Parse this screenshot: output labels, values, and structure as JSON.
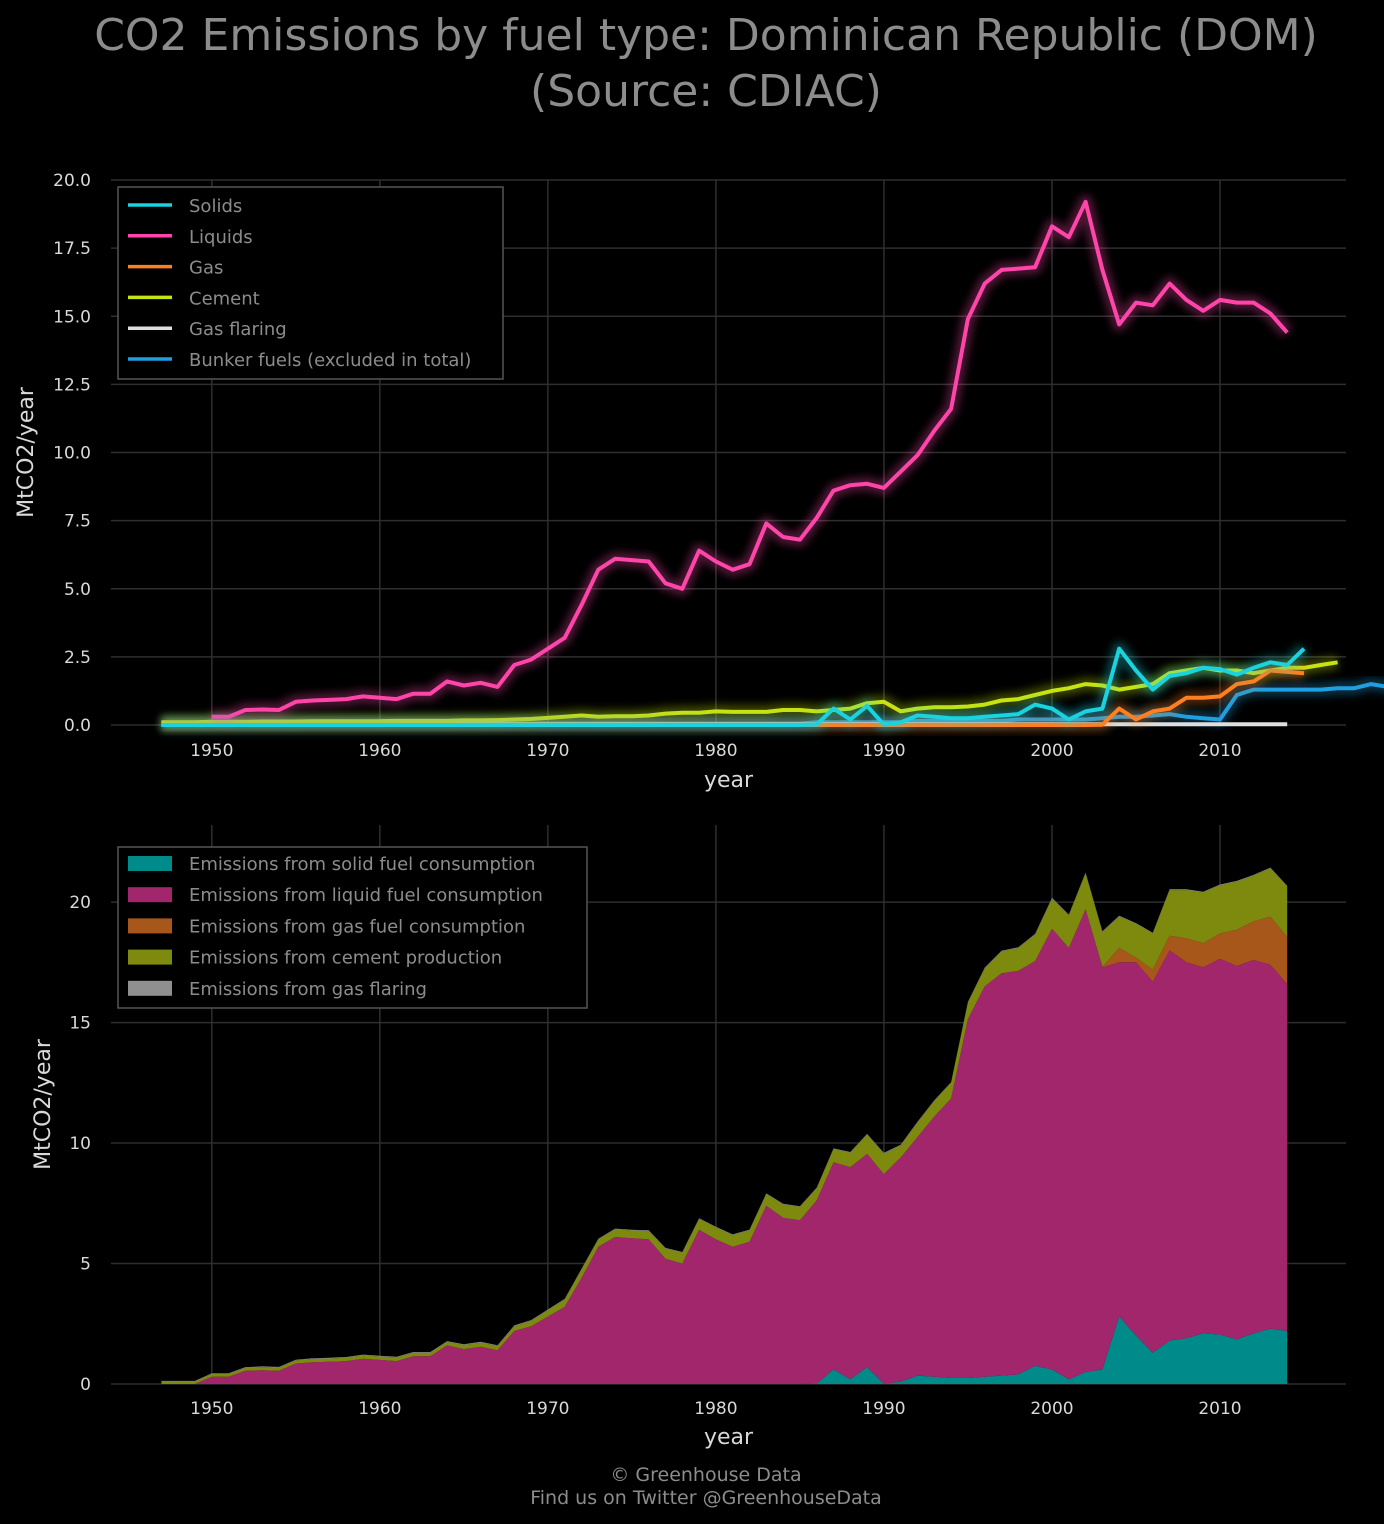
{
  "title_line1": "CO2 Emissions by fuel type: Dominican Republic (DOM)",
  "title_line2": "(Source: CDIAC)",
  "footer_line1": "© Greenhouse Data",
  "footer_line2": "Find us on Twitter @GreenhouseData",
  "chart_data": [
    {
      "type": "line",
      "xlabel": "year",
      "ylabel": "MtCO2/year",
      "xlim": [
        1944,
        2017.5
      ],
      "ylim": [
        0,
        20
      ],
      "xticks": [
        1950,
        1960,
        1970,
        1980,
        1990,
        2000,
        2010
      ],
      "yticks": [
        0,
        2.5,
        5,
        7.5,
        10,
        12.5,
        15,
        17.5,
        20
      ],
      "ytick_labels": [
        "0.0",
        "2.5",
        "5.0",
        "7.5",
        "10.0",
        "12.5",
        "15.0",
        "17.5",
        "20.0"
      ],
      "grid": true,
      "legend_position": "top-left",
      "x_start": 1947,
      "series": [
        {
          "name": "Solids",
          "color": "#19d3df",
          "start": 1947,
          "values": [
            0,
            0,
            0,
            0,
            0,
            0,
            0,
            0,
            0,
            0,
            0,
            0,
            0,
            0,
            0,
            0,
            0,
            0,
            0,
            0,
            0,
            0,
            0,
            0,
            0,
            0,
            0,
            0,
            0,
            0,
            0,
            0,
            0,
            0,
            0,
            0,
            0,
            0,
            0,
            0.02,
            0.6,
            0.2,
            0.7,
            0.01,
            0.1,
            0.35,
            0.3,
            0.25,
            0.25,
            0.3,
            0.35,
            0.4,
            0.75,
            0.6,
            0.2,
            0.5,
            0.6,
            2.8,
            2.0,
            1.3,
            1.8,
            1.9,
            2.1,
            2.05,
            1.85,
            2.1,
            2.3,
            2.2,
            2.8
          ]
        },
        {
          "name": "Liquids",
          "color": "#ff44aa",
          "start": 1950,
          "values": [
            0.3,
            0.3,
            0.55,
            0.57,
            0.55,
            0.85,
            0.9,
            0.92,
            0.95,
            1.05,
            1.0,
            0.95,
            1.15,
            1.15,
            1.6,
            1.45,
            1.55,
            1.4,
            2.2,
            2.4,
            2.8,
            3.2,
            4.4,
            5.7,
            6.1,
            6.05,
            6.0,
            5.2,
            5.0,
            6.4,
            6.0,
            5.7,
            5.9,
            7.4,
            6.9,
            6.8,
            7.6,
            8.6,
            8.8,
            8.85,
            8.7,
            9.3,
            9.9,
            10.8,
            11.6,
            14.9,
            16.2,
            16.7,
            16.75,
            16.8,
            18.3,
            17.9,
            19.2,
            16.7,
            14.7,
            15.5,
            15.4,
            16.2,
            15.6,
            15.2,
            15.6,
            15.5,
            15.5,
            15.1,
            14.4
          ]
        },
        {
          "name": "Gas",
          "color": "#ff7f1e",
          "start": 1947,
          "values": [
            0,
            0,
            0,
            0,
            0,
            0,
            0,
            0,
            0,
            0,
            0,
            0,
            0,
            0,
            0,
            0,
            0,
            0,
            0,
            0,
            0,
            0,
            0,
            0,
            0,
            0,
            0,
            0,
            0,
            0,
            0,
            0,
            0,
            0,
            0,
            0,
            0,
            0,
            0,
            0,
            0,
            0,
            0,
            0,
            0,
            0,
            0,
            0,
            0,
            0,
            0,
            0,
            0,
            0,
            0,
            0,
            0.01,
            0.6,
            0.2,
            0.5,
            0.6,
            1.0,
            1.0,
            1.05,
            1.5,
            1.6,
            2.0,
            1.95,
            1.9
          ]
        },
        {
          "name": "Cement",
          "color": "#c8e312",
          "start": 1947,
          "values": [
            0.1,
            0.1,
            0.1,
            0.12,
            0.12,
            0.12,
            0.13,
            0.13,
            0.13,
            0.14,
            0.14,
            0.14,
            0.14,
            0.14,
            0.15,
            0.15,
            0.15,
            0.15,
            0.17,
            0.17,
            0.18,
            0.2,
            0.22,
            0.26,
            0.3,
            0.35,
            0.3,
            0.32,
            0.32,
            0.35,
            0.42,
            0.45,
            0.45,
            0.5,
            0.48,
            0.48,
            0.48,
            0.55,
            0.55,
            0.5,
            0.55,
            0.6,
            0.8,
            0.85,
            0.5,
            0.6,
            0.65,
            0.65,
            0.68,
            0.75,
            0.9,
            0.95,
            1.1,
            1.25,
            1.35,
            1.5,
            1.45,
            1.3,
            1.4,
            1.5,
            1.9,
            2.0,
            2.1,
            2.0,
            2.0,
            1.9,
            2.0,
            2.1,
            2.1,
            2.2,
            2.3
          ]
        },
        {
          "name": "Gas flaring",
          "color": "#dedede",
          "start": 1947,
          "values": [
            0.03,
            0.03,
            0.03,
            0.03,
            0.03,
            0.03,
            0.03,
            0.03,
            0.03,
            0.03,
            0.03,
            0.03,
            0.03,
            0.03,
            0.03,
            0.03,
            0.03,
            0.03,
            0.03,
            0.03,
            0.03,
            0.03,
            0.03,
            0.03,
            0.03,
            0.03,
            0.03,
            0.03,
            0.03,
            0.03,
            0.03,
            0.03,
            0.03,
            0.03,
            0.03,
            0.03,
            0.03,
            0.03,
            0.03,
            0.03,
            0.03,
            0.03,
            0.03,
            0.03,
            0.03,
            0.03,
            0.03,
            0.03,
            0.03,
            0.03,
            0.03,
            0.03,
            0.03,
            0.03,
            0.03,
            0.03,
            0.03,
            0.03,
            0.03,
            0.03,
            0.03,
            0.03,
            0.03,
            0.03,
            0.03,
            0.03,
            0.03,
            0.03
          ]
        },
        {
          "name": "Bunker fuels (excluded in total)",
          "color": "#1f9fe0",
          "start": 1947,
          "values": [
            0.05,
            0.05,
            0.05,
            0.05,
            0.05,
            0.05,
            0.05,
            0.05,
            0.05,
            0.05,
            0.05,
            0.05,
            0.05,
            0.05,
            0.05,
            0.05,
            0.05,
            0.05,
            0.05,
            0.05,
            0.05,
            0.05,
            0.05,
            0.05,
            0.05,
            0.05,
            0.05,
            0.05,
            0.05,
            0.05,
            0.05,
            0.05,
            0.05,
            0.05,
            0.05,
            0.05,
            0.05,
            0.05,
            0.05,
            0.1,
            0.1,
            0.1,
            0.1,
            0.1,
            0.1,
            0.15,
            0.15,
            0.15,
            0.15,
            0.15,
            0.15,
            0.2,
            0.2,
            0.2,
            0.2,
            0.2,
            0.25,
            0.3,
            0.3,
            0.35,
            0.4,
            0.3,
            0.25,
            0.2,
            1.1,
            1.3,
            1.3,
            1.3,
            1.3,
            1.3,
            1.35,
            1.35,
            1.5,
            1.4,
            1.5
          ]
        }
      ]
    },
    {
      "type": "area",
      "xlabel": "year",
      "ylabel": "MtCO2/year",
      "xlim": [
        1944,
        2017.5
      ],
      "ylim": [
        0,
        23.2
      ],
      "xticks": [
        1950,
        1960,
        1970,
        1980,
        1990,
        2000,
        2010
      ],
      "yticks": [
        0,
        5,
        10,
        15,
        20
      ],
      "grid": true,
      "stacked": true,
      "legend_position": "top-left",
      "series": [
        {
          "name": "Emissions from solid fuel consumption",
          "color": "#008b8b"
        },
        {
          "name": "Emissions from liquid fuel consumption",
          "color": "#a2266b"
        },
        {
          "name": "Emissions from gas fuel consumption",
          "color": "#a8571a"
        },
        {
          "name": "Emissions from cement production",
          "color": "#7d8a0e"
        },
        {
          "name": "Emissions from gas flaring",
          "color": "#8f8f8f"
        }
      ]
    }
  ]
}
